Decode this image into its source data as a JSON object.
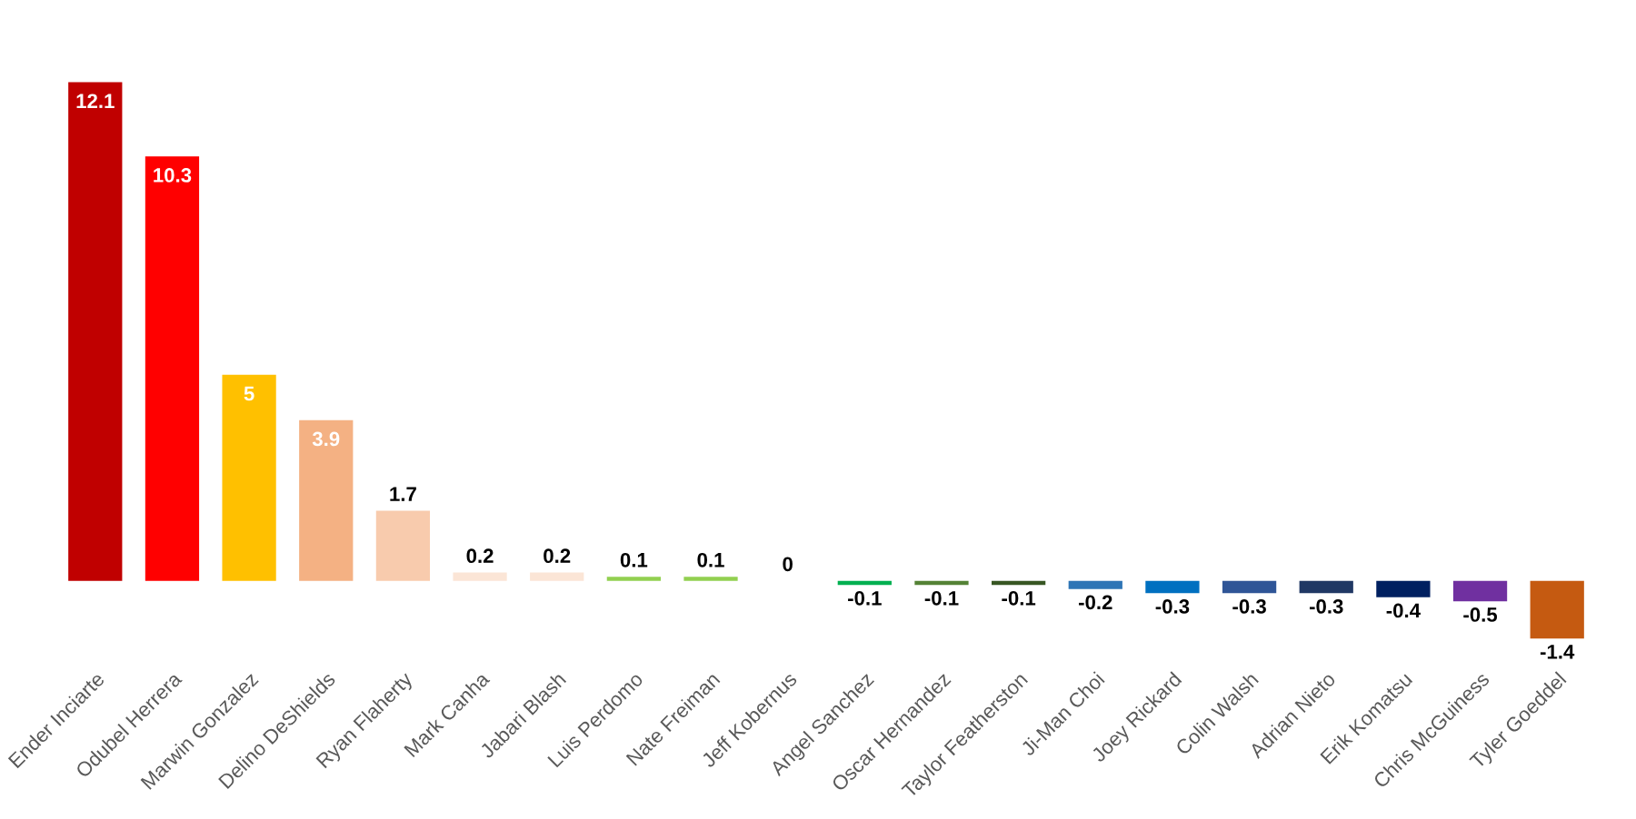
{
  "chart_data": {
    "type": "bar",
    "categories": [
      "Ender Inciarte",
      "Odubel Herrera",
      "Marwin Gonzalez",
      "Delino DeShields",
      "Ryan Flaherty",
      "Mark Canha",
      "Jabari Blash",
      "Luis Perdomo",
      "Nate Freiman",
      "Jeff Kobernus",
      "Angel Sanchez",
      "Oscar Hernandez",
      "Taylor Featherston",
      "Ji-Man Choi",
      "Joey Rickard",
      "Colin Walsh",
      "Adrian Nieto",
      "Erik Komatsu",
      "Chris McGuiness",
      "Tyler Goeddel"
    ],
    "values": [
      12.1,
      10.3,
      5,
      3.9,
      1.7,
      0.2,
      0.2,
      0.1,
      0.1,
      0,
      -0.1,
      -0.1,
      -0.1,
      -0.2,
      -0.3,
      -0.3,
      -0.3,
      -0.4,
      -0.5,
      -1.4
    ],
    "colors": [
      "#c00000",
      "#ff0000",
      "#ffc000",
      "#f4b183",
      "#f8cbad",
      "#fbe5d6",
      "#fbe5d6",
      "#92d050",
      "#92d050",
      "#ffffff",
      "#00b050",
      "#548235",
      "#375623",
      "#2e75b6",
      "#0070c0",
      "#2f5597",
      "#203864",
      "#002060",
      "#7030a0",
      "#c55a11"
    ],
    "data_labels": true
  }
}
